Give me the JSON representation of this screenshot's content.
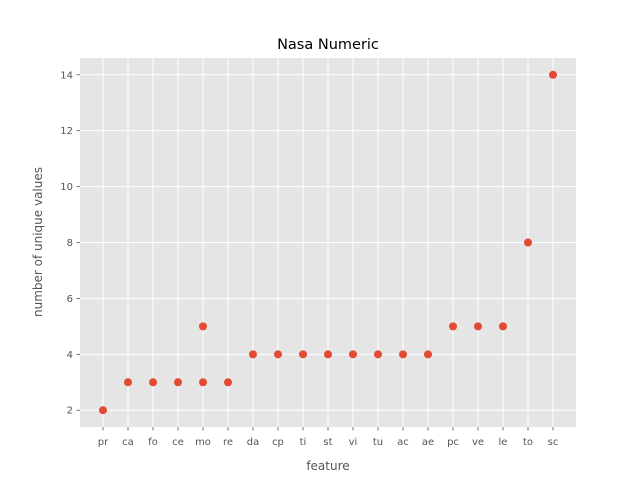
{
  "chart_data": {
    "type": "scatter",
    "title": "Nasa Numeric",
    "xlabel": "feature",
    "ylabel": "number of unique values",
    "categories": [
      "pr",
      "ca",
      "fo",
      "ce",
      "mo",
      "re",
      "da",
      "cp",
      "ti",
      "st",
      "vi",
      "tu",
      "ac",
      "ae",
      "pc",
      "ve",
      "le",
      "to",
      "sc"
    ],
    "points": [
      {
        "x": "pr",
        "y": 2
      },
      {
        "x": "ca",
        "y": 3
      },
      {
        "x": "fo",
        "y": 3
      },
      {
        "x": "ce",
        "y": 3
      },
      {
        "x": "mo",
        "y": 3
      },
      {
        "x": "mo",
        "y": 5
      },
      {
        "x": "re",
        "y": 3
      },
      {
        "x": "da",
        "y": 4
      },
      {
        "x": "cp",
        "y": 4
      },
      {
        "x": "ti",
        "y": 4
      },
      {
        "x": "st",
        "y": 4
      },
      {
        "x": "vi",
        "y": 4
      },
      {
        "x": "tu",
        "y": 4
      },
      {
        "x": "ac",
        "y": 4
      },
      {
        "x": "ae",
        "y": 4
      },
      {
        "x": "pc",
        "y": 5
      },
      {
        "x": "ve",
        "y": 5
      },
      {
        "x": "le",
        "y": 5
      },
      {
        "x": "to",
        "y": 8
      },
      {
        "x": "sc",
        "y": 14
      }
    ],
    "yticks": [
      2,
      4,
      6,
      8,
      10,
      12,
      14
    ],
    "ylim": [
      1.4,
      14.6
    ],
    "grid": true,
    "colors": {
      "marker": "#E24A33",
      "plot_background": "#E5E5E5",
      "grid": "#FFFFFF"
    }
  }
}
